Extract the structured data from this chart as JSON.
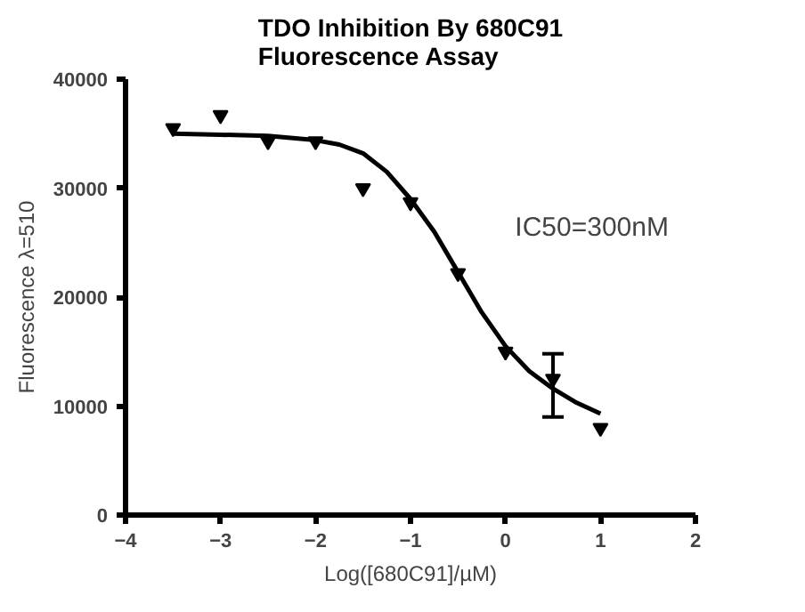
{
  "chart_data": {
    "type": "scatter",
    "title": "TDO Inhibition By 680C91\nFluorescence Assay",
    "xlabel": "Log([680C91]/µM)",
    "ylabel": "Fluorescence λ=510",
    "annotations": [
      "IC50=300nM"
    ],
    "series": [
      {
        "color": "#000000",
        "marker": "triangle",
        "x": [
          -3.5,
          -3,
          -2.5,
          -2,
          -1.5,
          -1,
          -0.5,
          0,
          0.5,
          1
        ],
        "values": [
          35500,
          36700,
          34300,
          34300,
          30000,
          28700,
          22200,
          15000,
          12500,
          8000
        ],
        "errors": [
          null,
          null,
          null,
          null,
          null,
          null,
          null,
          null,
          [
            9000,
            14800
          ],
          null
        ]
      },
      {
        "type": "line",
        "color": "#000000",
        "line_style": "solid",
        "x": [
          -3.5,
          -3,
          -2.5,
          -2,
          -1.75,
          -1.5,
          -1.25,
          -1,
          -0.75,
          -0.5,
          -0.25,
          0,
          0.25,
          0.5,
          0.75,
          1
        ],
        "values": [
          35000,
          34900,
          34800,
          34400,
          34000,
          33200,
          31500,
          29000,
          26000,
          22300,
          18600,
          15500,
          13200,
          11600,
          10300,
          9300
        ]
      }
    ],
    "xlim": [
      -4,
      2
    ],
    "xticks": [
      -4,
      -3,
      -2,
      -1,
      0,
      1,
      2
    ],
    "ylim": [
      0,
      40000
    ],
    "yticks": [
      0,
      10000,
      20000,
      30000,
      40000
    ],
    "grid": false
  }
}
